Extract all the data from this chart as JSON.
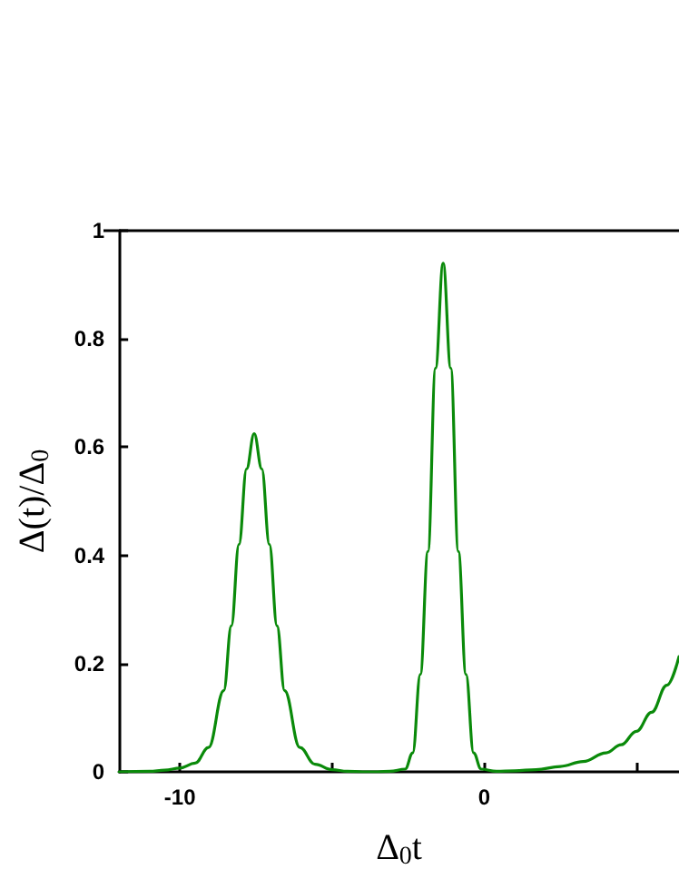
{
  "chart_data": {
    "type": "line",
    "xlabel": "Δ$_{0}$t",
    "ylabel": "Δ(t)/Δ$_{0}$",
    "xlim": [
      -12,
      6.4
    ],
    "ylim": [
      0,
      1
    ],
    "xticks": [
      -10,
      {
        "value": -5,
        "label": null
      },
      0,
      {
        "value": 5,
        "label": null
      }
    ],
    "yticks": [
      0,
      0.2,
      0.4,
      0.6,
      0.8,
      1
    ],
    "grid": false,
    "marker": "none",
    "line_style": "solid",
    "x": [
      -12,
      -11,
      -10.5,
      -10,
      -9.5,
      -9.06,
      -8.56,
      -8.31,
      -8.06,
      -7.81,
      -7.56,
      -7.31,
      -7.06,
      -6.81,
      -6.56,
      -6.06,
      -5.56,
      -5,
      -4.5,
      -4,
      -3.5,
      -3.1,
      -2.6,
      -2.35,
      -2.1,
      -1.85,
      -1.6,
      -1.35,
      -1.1,
      -0.85,
      -0.6,
      -0.35,
      -0.1,
      0.4,
      1,
      1.7,
      2.5,
      3.25,
      4,
      4.5,
      5,
      5.5,
      6,
      6.4
    ],
    "series": [
      {
        "color": "#0a8a0a",
        "values": [
          0,
          0.001,
          0.003,
          0.007,
          0.016,
          0.045,
          0.15,
          0.27,
          0.42,
          0.56,
          0.625,
          0.56,
          0.42,
          0.27,
          0.15,
          0.045,
          0.014,
          0.004,
          0.001,
          0,
          0,
          0.001,
          0.005,
          0.035,
          0.18,
          0.407,
          0.746,
          0.94,
          0.746,
          0.407,
          0.18,
          0.035,
          0.005,
          0.001,
          0.002,
          0.004,
          0.01,
          0.019,
          0.035,
          0.05,
          0.075,
          0.11,
          0.16,
          0.213
        ]
      }
    ]
  }
}
